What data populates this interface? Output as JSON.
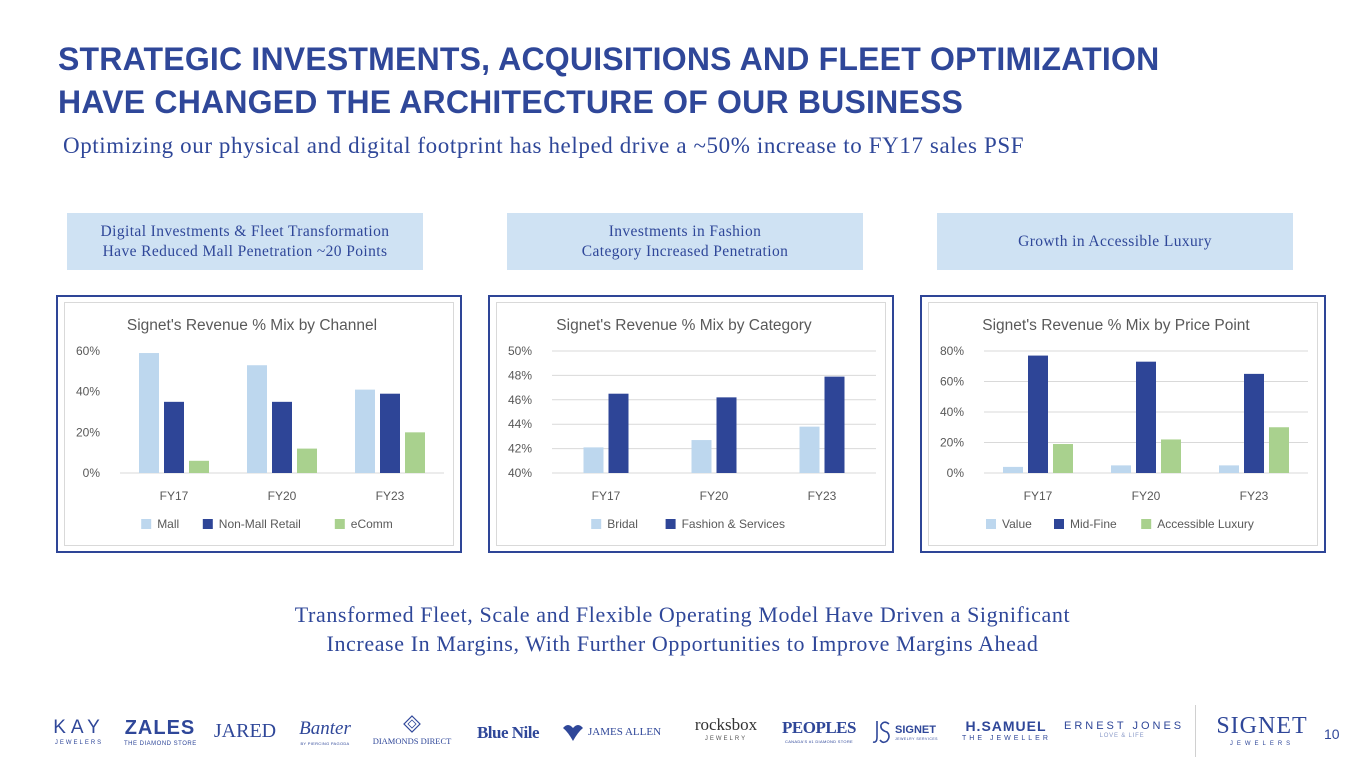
{
  "slide": {
    "title_line1": "STRATEGIC INVESTMENTS, ACQUISITIONS AND FLEET OPTIMIZATION",
    "title_line2": "HAVE CHANGED THE ARCHITECTURE OF OUR BUSINESS",
    "subtitle": "Optimizing our physical and digital footprint has helped drive a ~50% increase to FY17 sales PSF",
    "page_number": "10"
  },
  "callouts": [
    {
      "line1": "Digital Investments & Fleet Transformation",
      "line2": "Have Reduced Mall Penetration ~20 Points"
    },
    {
      "line1": "Investments in Fashion",
      "line2": "Category Increased Penetration"
    },
    {
      "line1": "Growth in Accessible Luxury",
      "line2": ""
    }
  ],
  "chart_data": [
    {
      "type": "bar",
      "title": "Signet's Revenue % Mix by Channel",
      "categories": [
        "FY17",
        "FY20",
        "FY23"
      ],
      "series": [
        {
          "name": "Mall",
          "color": "#bdd7ee",
          "values": [
            59,
            53,
            41
          ]
        },
        {
          "name": "Non-Mall Retail",
          "color": "#2e4597",
          "values": [
            35,
            35,
            39
          ]
        },
        {
          "name": "eComm",
          "color": "#a9d18e",
          "values": [
            6,
            12,
            20
          ]
        }
      ],
      "ylim": [
        0,
        60
      ],
      "yticks": [
        0,
        20,
        40,
        60
      ],
      "ytick_labels": [
        "0%",
        "20%",
        "40%",
        "60%"
      ],
      "xlabel": "",
      "ylabel": "",
      "grid": false,
      "legend": "bottom"
    },
    {
      "type": "bar",
      "title": "Signet's Revenue % Mix by Category",
      "categories": [
        "FY17",
        "FY20",
        "FY23"
      ],
      "series": [
        {
          "name": "Bridal",
          "color": "#bdd7ee",
          "values": [
            42.1,
            42.7,
            43.8
          ]
        },
        {
          "name": "Fashion & Services",
          "color": "#2e4597",
          "values": [
            46.5,
            46.2,
            47.9
          ]
        }
      ],
      "ylim": [
        40,
        50
      ],
      "yticks": [
        40,
        42,
        44,
        46,
        48,
        50
      ],
      "ytick_labels": [
        "40%",
        "42%",
        "44%",
        "46%",
        "48%",
        "50%"
      ],
      "xlabel": "",
      "ylabel": "",
      "grid": true,
      "legend": "bottom"
    },
    {
      "type": "bar",
      "title": "Signet's Revenue % Mix by Price Point",
      "categories": [
        "FY17",
        "FY20",
        "FY23"
      ],
      "series": [
        {
          "name": "Value",
          "color": "#bdd7ee",
          "values": [
            4,
            5,
            5
          ]
        },
        {
          "name": "Mid-Fine",
          "color": "#2e4597",
          "values": [
            77,
            73,
            65
          ]
        },
        {
          "name": "Accessible Luxury",
          "color": "#a9d18e",
          "values": [
            19,
            22,
            30
          ]
        }
      ],
      "ylim": [
        0,
        80
      ],
      "yticks": [
        0,
        20,
        40,
        60,
        80
      ],
      "ytick_labels": [
        "0%",
        "20%",
        "40%",
        "60%",
        "80%"
      ],
      "xlabel": "",
      "ylabel": "",
      "grid": true,
      "legend": "bottom"
    }
  ],
  "bottom": {
    "line1": "Transformed Fleet, Scale and Flexible Operating Model Have Driven a Significant",
    "line2": "Increase In Margins, With Further Opportunities to Improve Margins Ahead"
  },
  "logos": {
    "kay": "KAY",
    "kay_sub": "JEWELERS",
    "zales": "ZALES",
    "zales_sub": "THE DIAMOND STORE",
    "jared": "JARED",
    "banter": "Banter",
    "banter_sub": "BY PIERCING PAGODA",
    "diamonds_direct": "DIAMONDS DIRECT",
    "blue_nile": "Blue Nile",
    "james_allen": "JAMES ALLEN",
    "rocksbox": "rocksbox",
    "rocksbox_sub": "JEWELRY",
    "peoples": "PEOPLES",
    "peoples_sub": "CANADA'S #1 DIAMOND STORE",
    "js_signet": "SIGNET",
    "js_signet_sub": "JEWELRY SERVICES",
    "hsamuel": "H.SAMUEL",
    "hsamuel_sub": "THE JEWELLER",
    "ernest_jones": "ERNEST JONES",
    "ernest_jones_sub": "LOVE & LIFE",
    "signet": "SIGNET",
    "signet_sub": "JEWELERS"
  },
  "colors": {
    "brand": "#2f4799",
    "navy": "#2e4597",
    "light_blue": "#bdd7ee",
    "green": "#a9d18e",
    "callout": "#cfe2f3"
  }
}
